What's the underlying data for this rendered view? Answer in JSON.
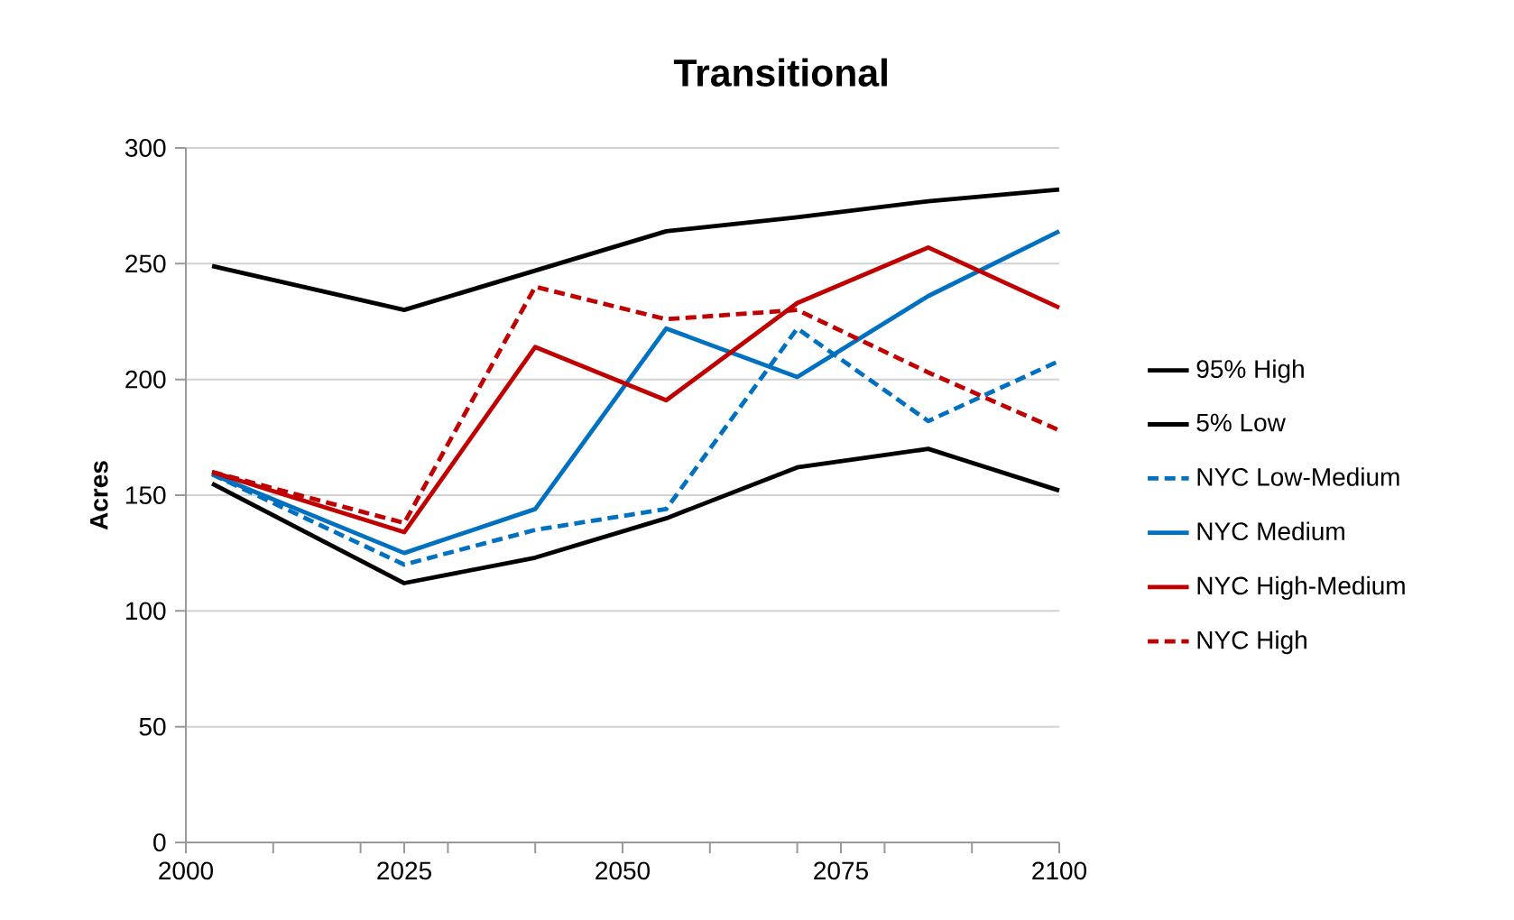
{
  "chart_data": {
    "type": "line",
    "title": "Transitional",
    "ylabel": "Acres",
    "x": [
      2003,
      2025,
      2040,
      2055,
      2070,
      2085,
      2100
    ],
    "xlim": [
      2000,
      2100
    ],
    "xticks": [
      2000,
      {
        "value": 2010,
        "label": null
      },
      {
        "value": 2020,
        "label": null
      },
      2025,
      {
        "value": 2030,
        "label": null
      },
      {
        "value": 2040,
        "label": null
      },
      2050,
      {
        "value": 2060,
        "label": null
      },
      {
        "value": 2070,
        "label": null
      },
      2075,
      {
        "value": 2080,
        "label": null
      },
      {
        "value": 2090,
        "label": null
      },
      2100
    ],
    "ylim": [
      0,
      300
    ],
    "yticks": [
      0,
      50,
      100,
      150,
      200,
      250,
      300
    ],
    "grid": "y",
    "legend": "right",
    "marker": "none",
    "series": [
      {
        "name": "95% High",
        "color": "#000000",
        "line_style": "solid",
        "values": [
          249,
          230,
          247,
          264,
          270,
          277,
          282
        ]
      },
      {
        "name": "5% Low",
        "color": "#000000",
        "line_style": "solid",
        "values": [
          155,
          112,
          123,
          140,
          162,
          170,
          152
        ]
      },
      {
        "name": "NYC Low-Medium",
        "color": "#0070c0",
        "line_style": "dashed",
        "values": [
          159,
          120,
          135,
          144,
          222,
          182,
          208
        ]
      },
      {
        "name": "NYC Medium",
        "color": "#0070c0",
        "line_style": "solid",
        "values": [
          159,
          125,
          144,
          222,
          201,
          236,
          264
        ]
      },
      {
        "name": "NYC High-Medium",
        "color": "#c00000",
        "line_style": "solid",
        "values": [
          160,
          134,
          214,
          191,
          233,
          257,
          231
        ]
      },
      {
        "name": "NYC High",
        "color": "#c00000",
        "line_style": "dashed",
        "values": [
          160,
          138,
          240,
          226,
          230,
          203,
          178
        ]
      }
    ]
  }
}
